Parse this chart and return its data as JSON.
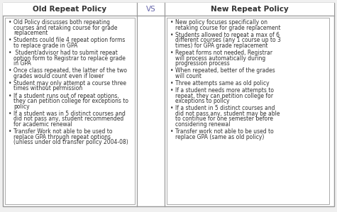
{
  "title_left": "Old Repeat Policy",
  "title_center": "VS",
  "title_right": "New Repeat Policy",
  "left_bullets": [
    "Old Policy discusses both repeating\ncourses and retaking course for grade\nreplacement",
    "Students could file 4 repeat option forms\nto replace grade in GPA",
    " Student/advisor had to submit repeat\noption form to Registrar to replace grade\nin GPA",
    "Once class repeated, the latter of the two\ngrades would count even if lower",
    "Student may only attempt a course three\ntimes without permission",
    "If a student runs out of repeat options,\nthey can petition college for exceptions to\npolicy",
    "If a student was in 5 distinct courses and\ndid not pass any, student recommended\nfor academic renewal",
    "Transfer Work not able to be used to\nreplace GPA through repeat options\n(unless under old transfer policy 2004-08)"
  ],
  "right_bullets": [
    "New policy focuses specifically on\nretaking course for grade replacement",
    "Students allowed to repeat a max of 6\ndifferent courses (any 1 course up to 3\ntimes) for GPA grade replacement",
    "Repeat forms not needed, Registrar\nwill process automatically during\nprogression process",
    "When repeated, better of the grades\nwill count",
    "Three attempts same as old policy",
    "If a student needs more attempts to\nrepeat, they can petition college for\nexceptions to policy",
    "If a student in 5 distinct courses and\ndid not pass any, student may be able\nto continue for one semester before\nconsidering renewal",
    "Transfer work not able to be used to\nreplace GPA (same as old policy)"
  ],
  "bg_color": "#f0f0f0",
  "border_color": "#999999",
  "inner_border_color": "#aaaaaa",
  "text_color": "#333333",
  "header_font_size": 7.5,
  "bullet_font_size": 5.5,
  "vs_font_size": 7.5,
  "fig_width": 4.75,
  "fig_height": 2.99,
  "dpi": 100
}
